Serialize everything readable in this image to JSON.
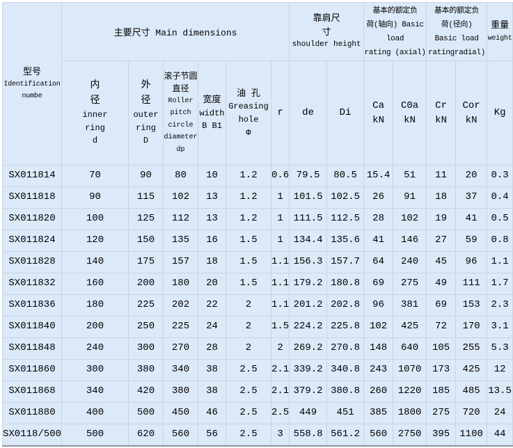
{
  "colors": {
    "cell_background": "#dce9f8",
    "grid_line": "#c7d4e2",
    "outer_border": "#a2adb8",
    "bottom_border": "#8b95a0",
    "text": "#000000",
    "page_background": "#ffffff"
  },
  "table": {
    "header": {
      "id_cn": "型号",
      "id_en": "Identification\nnumbe",
      "main": "主要尺寸 Main dimensions",
      "shoulder_cn": "靠肩尺\n寸",
      "shoulder_en": "shoulder height",
      "axial": "基本的额定负\n荷(轴向) Basic\nload\nrating (axial)",
      "radial": "基本的额定负\n荷(径向)\nBasic load\nratingradial)",
      "weight_cn": "重量",
      "weight_en": "weight",
      "sub": {
        "inner": {
          "cn": "内\n径",
          "en": "inner\nring\nd"
        },
        "outer": {
          "cn": "外\n径",
          "en": "outer\nring\nD"
        },
        "roller": {
          "cn": "滚子节圆\n直径",
          "en": "Roller\npitch\ncircle\ndiameter\ndp"
        },
        "width": {
          "cn": "宽度",
          "en": "width\nB B1"
        },
        "grease": {
          "cn": "油 孔",
          "en": "Greasing\nhole\nΦ"
        },
        "r": "r",
        "de": "de",
        "di": "Di",
        "ca": "Ca\nkN",
        "c0a": "C0a\nkN",
        "cr": "Cr\nkN",
        "cor": "Cor\nkN",
        "kg": "Kg"
      }
    },
    "rows": [
      [
        "SX011814",
        70,
        90,
        80,
        10,
        1.2,
        0.6,
        79.5,
        80.5,
        15.4,
        51,
        11,
        20,
        0.3
      ],
      [
        "SX011818",
        90,
        115,
        102,
        13,
        1.2,
        1,
        101.5,
        102.5,
        26,
        91,
        18,
        37,
        0.4
      ],
      [
        "SX011820",
        100,
        125,
        112,
        13,
        1.2,
        1,
        111.5,
        112.5,
        28,
        102,
        19,
        41,
        0.5
      ],
      [
        "SX011824",
        120,
        150,
        135,
        16,
        1.5,
        1,
        134.4,
        135.6,
        41,
        146,
        27,
        59,
        0.8
      ],
      [
        "SX011828",
        140,
        175,
        157,
        18,
        1.5,
        1.1,
        156.3,
        157.7,
        64,
        240,
        45,
        96,
        1.1
      ],
      [
        "SX011832",
        160,
        200,
        180,
        20,
        1.5,
        1.1,
        179.2,
        180.8,
        69,
        275,
        49,
        111,
        1.7
      ],
      [
        "SX011836",
        180,
        225,
        202,
        22,
        2,
        1.1,
        201.2,
        202.8,
        96,
        381,
        69,
        153,
        2.3
      ],
      [
        "SX011840",
        200,
        250,
        225,
        24,
        2,
        1.5,
        224.2,
        225.8,
        102,
        425,
        72,
        170,
        3.1
      ],
      [
        "SX011848",
        240,
        300,
        270,
        28,
        2,
        2,
        269.2,
        270.8,
        148,
        640,
        105,
        255,
        5.3
      ],
      [
        "SX011860",
        300,
        380,
        340,
        38,
        2.5,
        2.1,
        339.2,
        340.8,
        243,
        1070,
        173,
        425,
        12
      ],
      [
        "SX011868",
        340,
        420,
        380,
        38,
        2.5,
        2.1,
        379.2,
        380.8,
        260,
        1220,
        185,
        485,
        13.5
      ],
      [
        "SX011880",
        400,
        500,
        450,
        46,
        2.5,
        2.5,
        449,
        451,
        385,
        1800,
        275,
        720,
        24
      ],
      [
        "SX0118/500",
        500,
        620,
        560,
        56,
        2.5,
        3,
        558.8,
        561.2,
        560,
        2750,
        395,
        1100,
        44
      ]
    ]
  }
}
